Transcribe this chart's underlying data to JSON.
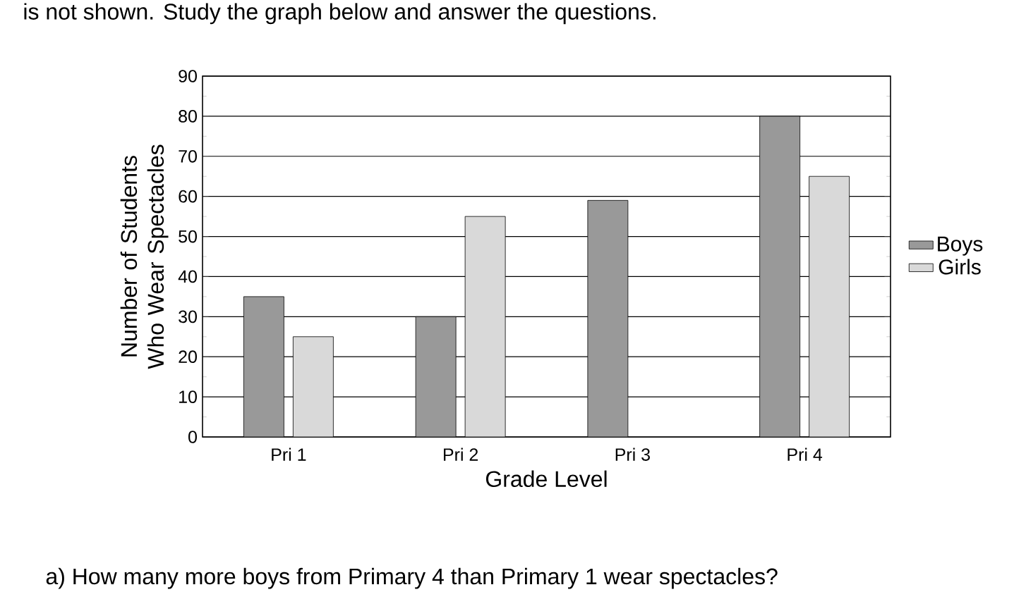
{
  "chart_data": {
    "type": "bar",
    "xlabel": "Grade Level",
    "ylabel": "Number of Students Who Wear Spectacles",
    "categories": [
      "Pri 1",
      "Pri 2",
      "Pri 3",
      "Pri 4"
    ],
    "series": [
      {
        "name": "Boys",
        "color": "#999999",
        "values": [
          35,
          30,
          59,
          80
        ]
      },
      {
        "name": "Girls",
        "color": "#d9d9d9",
        "values": [
          25,
          55,
          null,
          65
        ]
      }
    ],
    "ylim": [
      0,
      90
    ],
    "yticks": [
      0,
      10,
      20,
      30,
      40,
      50,
      60,
      70,
      80,
      90
    ],
    "grid": "y",
    "legend": "right",
    "annotations": [
      "is not shown. Study the graph below and answer the questions.",
      "a)   How many more boys from Primary 4 than Primary 1 wear spectacles?"
    ]
  }
}
